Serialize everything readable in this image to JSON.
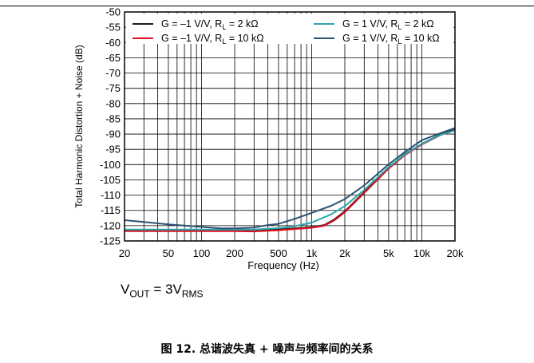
{
  "chart_data": {
    "type": "line",
    "ylabel": "Total Harmonic Distortion + Noise (dB)",
    "xlabel": "Frequency (Hz)",
    "xscale": "log",
    "xlim": [
      20,
      20000
    ],
    "ylim": [
      -125,
      -50
    ],
    "x_ticks": [
      20,
      50,
      100,
      200,
      500,
      1000,
      2000,
      5000,
      10000,
      20000
    ],
    "x_tick_labels": [
      "20",
      "50",
      "100",
      "200",
      "500",
      "1k",
      "2k",
      "5k",
      "10k",
      "20k"
    ],
    "y_ticks": [
      -50,
      -55,
      -60,
      -65,
      -70,
      -75,
      -80,
      -85,
      -90,
      -95,
      -100,
      -105,
      -110,
      -115,
      -120,
      -125
    ],
    "y_tick_labels": [
      "-50",
      "-55",
      "-60",
      "-65",
      "-70",
      "-75",
      "-80",
      "-85",
      "-90",
      "-95",
      "-100",
      "-105",
      "-110",
      "-115",
      "-120",
      "-125"
    ],
    "grid": true,
    "legend_position": "top",
    "series": [
      {
        "name": "G = –1 V/V, RL = 2 kΩ",
        "legend": {
          "pre": "G = –1 V/V, R",
          "sub": "L",
          "post": " = 2 kΩ"
        },
        "color": "#1a1a1a",
        "points": [
          [
            20,
            -121.6
          ],
          [
            50,
            -121.6
          ],
          [
            100,
            -121.6
          ],
          [
            200,
            -121.6
          ],
          [
            300,
            -121.8
          ],
          [
            500,
            -121.3
          ],
          [
            700,
            -120.9
          ],
          [
            1000,
            -120.5
          ],
          [
            1300,
            -119.8
          ],
          [
            1600,
            -118.0
          ],
          [
            2000,
            -115.3
          ],
          [
            3000,
            -109.0
          ],
          [
            5000,
            -101.0
          ],
          [
            7000,
            -96.6
          ],
          [
            10000,
            -93.2
          ],
          [
            15000,
            -90.0
          ],
          [
            20000,
            -88.6
          ]
        ]
      },
      {
        "name": "G = –1 V/V, RL = 10 kΩ",
        "legend": {
          "pre": "G = –1 V/V, R",
          "sub": "L",
          "post": " = 10 kΩ"
        },
        "color": "#e0101e",
        "points": [
          [
            20,
            -121.8
          ],
          [
            50,
            -121.8
          ],
          [
            100,
            -121.8
          ],
          [
            200,
            -121.8
          ],
          [
            300,
            -121.9
          ],
          [
            500,
            -121.5
          ],
          [
            700,
            -121.1
          ],
          [
            1000,
            -120.7
          ],
          [
            1300,
            -120.0
          ],
          [
            1600,
            -118.3
          ],
          [
            2000,
            -115.6
          ],
          [
            3000,
            -109.3
          ],
          [
            5000,
            -101.3
          ],
          [
            7000,
            -96.9
          ],
          [
            10000,
            -93.4
          ],
          [
            15000,
            -90.2
          ],
          [
            20000,
            -88.8
          ]
        ]
      },
      {
        "name": "G = 1 V/V, RL = 2 kΩ",
        "legend": {
          "pre": "G = 1 V/V, R",
          "sub": "L",
          "post": " = 2 kΩ"
        },
        "color": "#2aa6ae",
        "points": [
          [
            20,
            -121.3
          ],
          [
            50,
            -121.3
          ],
          [
            100,
            -121.3
          ],
          [
            200,
            -121.3
          ],
          [
            300,
            -121.3
          ],
          [
            500,
            -120.8
          ],
          [
            700,
            -120.2
          ],
          [
            1000,
            -119.0
          ],
          [
            1500,
            -116.3
          ],
          [
            2000,
            -113.6
          ],
          [
            3000,
            -108.3
          ],
          [
            5000,
            -100.8
          ],
          [
            7000,
            -96.7
          ],
          [
            10000,
            -93.2
          ],
          [
            15000,
            -90.2
          ],
          [
            20000,
            -88.8
          ]
        ]
      },
      {
        "name": "G = 1 V/V, RL = 10 kΩ",
        "legend": {
          "pre": "G = 1 V/V, R",
          "sub": "L",
          "post": " = 10 kΩ"
        },
        "color": "#2c5272",
        "points": [
          [
            20,
            -118.2
          ],
          [
            30,
            -118.8
          ],
          [
            50,
            -119.6
          ],
          [
            100,
            -120.4
          ],
          [
            150,
            -120.9
          ],
          [
            200,
            -120.9
          ],
          [
            300,
            -120.6
          ],
          [
            400,
            -119.8
          ],
          [
            500,
            -119.4
          ],
          [
            700,
            -117.8
          ],
          [
            1000,
            -115.8
          ],
          [
            1500,
            -113.5
          ],
          [
            2000,
            -111.3
          ],
          [
            3000,
            -106.8
          ],
          [
            5000,
            -99.9
          ],
          [
            7000,
            -95.9
          ],
          [
            10000,
            -92.0
          ],
          [
            15000,
            -89.6
          ],
          [
            20000,
            -88.0
          ]
        ]
      }
    ]
  },
  "conditions": {
    "v_prefix": "V",
    "v_sub": "OUT",
    "equals": " = 3V",
    "rms_sub": "RMS"
  },
  "caption": "图 12. 总谐波失真 + 噪声与频率间的关系"
}
